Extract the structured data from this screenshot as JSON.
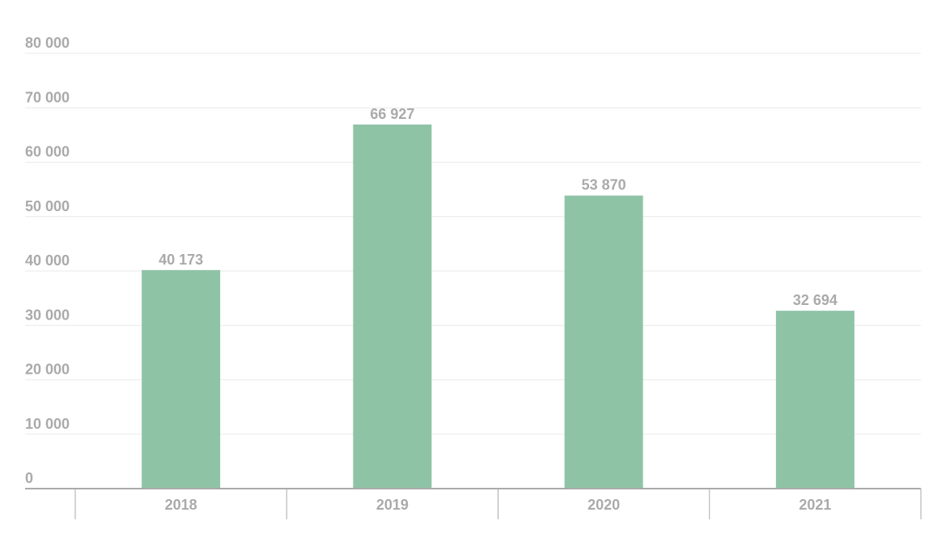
{
  "chart_data": {
    "type": "bar",
    "categories": [
      "2018",
      "2019",
      "2020",
      "2021"
    ],
    "values": [
      40173,
      66927,
      53870,
      32694
    ],
    "data_labels": [
      "40 173",
      "66 927",
      "53 870",
      "32 694"
    ],
    "y_ticks": [
      {
        "value": 0,
        "label": "0"
      },
      {
        "value": 10000,
        "label": "10 000"
      },
      {
        "value": 20000,
        "label": "20 000"
      },
      {
        "value": 30000,
        "label": "30 000"
      },
      {
        "value": 40000,
        "label": "40 000"
      },
      {
        "value": 50000,
        "label": "50 000"
      },
      {
        "value": 60000,
        "label": "60 000"
      },
      {
        "value": 70000,
        "label": "70 000"
      },
      {
        "value": 80000,
        "label": "80 000"
      }
    ],
    "ylim": [
      0,
      80000
    ],
    "title": "",
    "xlabel": "",
    "ylabel": "",
    "grid": true,
    "colors": {
      "bar": "#8fc3a6",
      "grid": "#e9e9e9",
      "axis": "#aaaaaa",
      "text": "#aaaaaa"
    }
  }
}
